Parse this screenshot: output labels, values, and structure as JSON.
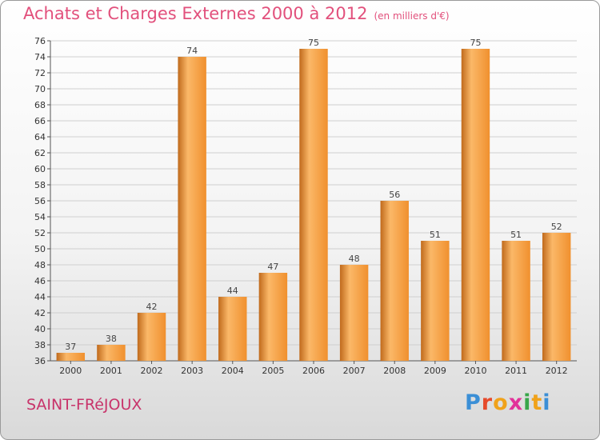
{
  "title": "Achats et Charges Externes 2000 à 2012",
  "subtitle": "(en milliers d'€)",
  "city": "SAINT-FRéJOUX",
  "brand": {
    "letters": [
      "P",
      "r",
      "o",
      "x",
      "i",
      "t",
      "i"
    ],
    "colors": [
      "#3b8fd6",
      "#e64a2b",
      "#f0a21b",
      "#e2329a",
      "#38a64a",
      "#f0a21b",
      "#3b8fd6"
    ]
  },
  "colors": {
    "bar": "#f0902e",
    "bar_highlight": "#fbb868",
    "bar_shadow": "#c06a1c",
    "grid": "#cfcfcf"
  },
  "chart_data": {
    "type": "bar",
    "categories": [
      "2000",
      "2001",
      "2002",
      "2003",
      "2004",
      "2005",
      "2006",
      "2007",
      "2008",
      "2009",
      "2010",
      "2011",
      "2012"
    ],
    "values": [
      37,
      38,
      42,
      74,
      44,
      47,
      75,
      48,
      56,
      51,
      75,
      51,
      52
    ],
    "title": "Achats et Charges Externes 2000 à 2012",
    "ylim": [
      36,
      76
    ],
    "yticks": [
      36,
      38,
      40,
      42,
      44,
      46,
      48,
      50,
      52,
      54,
      56,
      58,
      60,
      62,
      64,
      66,
      68,
      70,
      72,
      74,
      76
    ],
    "grid": true
  }
}
